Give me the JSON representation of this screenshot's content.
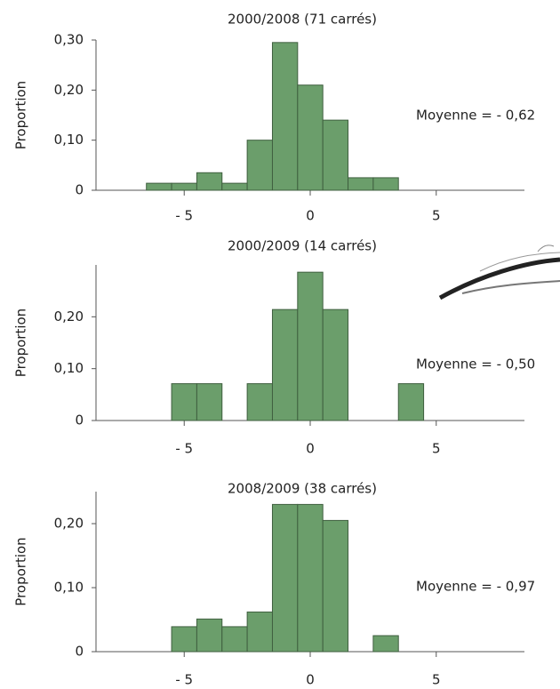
{
  "chart_data": [
    {
      "type": "histogram",
      "title": "2000/2008 (71 carrés)",
      "y_label": "Proportion",
      "annotation": "Moyenne = - 0,62",
      "bins": [
        -6.5,
        -5.5,
        -4.5,
        -3.5,
        -2.5,
        -1.5,
        -0.5,
        0.5,
        1.5,
        2.5,
        3.5
      ],
      "values": [
        0.014,
        0.014,
        0.035,
        0.014,
        0.1,
        0.295,
        0.21,
        0.14,
        0.025,
        0.025
      ],
      "color": "#6b9e6b",
      "edge_color": "#3f5f3f",
      "xlim": [
        -8.5,
        8.5
      ],
      "xticks": [
        {
          "value": -5,
          "label": "- 5"
        },
        0,
        5
      ],
      "ylim": [
        0,
        0.3
      ],
      "yticks": [
        0,
        {
          "value": 0.1,
          "label": "0,10"
        },
        {
          "value": 0.2,
          "label": "0,20"
        },
        {
          "value": 0.3,
          "label": "0,30"
        }
      ]
    },
    {
      "type": "histogram",
      "title": "2000/2009 (14 carrés)",
      "y_label": "Proportion",
      "annotation": "Moyenne = - 0,50",
      "bins": [
        -5.5,
        -4.5,
        -3.5,
        -2.5,
        -1.5,
        -0.5,
        0.5,
        1.5,
        2.5,
        3.5,
        4.5
      ],
      "values": [
        0.071,
        0.071,
        0,
        0.071,
        0.214,
        0.286,
        0.214,
        0,
        0,
        0.071
      ],
      "color": "#6b9e6b",
      "edge_color": "#3f5f3f",
      "xlim": [
        -8.5,
        8.5
      ],
      "xticks": [
        {
          "value": -5,
          "label": "- 5"
        },
        0,
        5
      ],
      "ylim": [
        0,
        0.3
      ],
      "yticks": [
        0,
        {
          "value": 0.1,
          "label": "0,10"
        },
        {
          "value": 0.2,
          "label": "0,20"
        }
      ]
    },
    {
      "type": "histogram",
      "title": "2008/2009 (38 carrés)",
      "y_label": "Proportion",
      "annotation": "Moyenne = - 0,97",
      "bins": [
        -5.5,
        -4.5,
        -3.5,
        -2.5,
        -1.5,
        -0.5,
        0.5,
        1.5,
        2.5,
        3.5
      ],
      "values": [
        0.039,
        0.051,
        0.039,
        0.062,
        0.23,
        0.23,
        0.205,
        0,
        0.025
      ],
      "color": "#6b9e6b",
      "edge_color": "#3f5f3f",
      "xlim": [
        -8.5,
        8.5
      ],
      "xticks": [
        {
          "value": -5,
          "label": "- 5"
        },
        0,
        5
      ],
      "ylim": [
        0,
        0.25
      ],
      "yticks": [
        0,
        {
          "value": 0.1,
          "label": "0,10"
        },
        {
          "value": 0.2,
          "label": "0,20"
        }
      ]
    }
  ]
}
